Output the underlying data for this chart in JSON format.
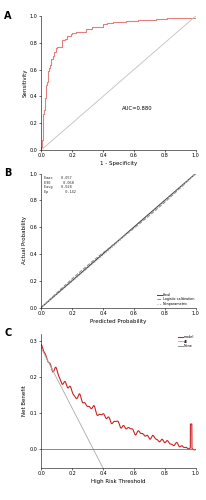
{
  "panel_A": {
    "title_label": "A",
    "auc_text": "AUC=0.880",
    "xlabel": "1 - Specificity",
    "ylabel": "Sensitivity",
    "roc_color": "#e08080",
    "diag_color": "#c0c0c0",
    "xlim": [
      0.0,
      1.0
    ],
    "ylim": [
      0.0,
      1.0
    ],
    "xticks": [
      0.0,
      0.2,
      0.4,
      0.6,
      0.8,
      1.0
    ],
    "yticks": [
      0.0,
      0.2,
      0.4,
      0.6,
      0.8,
      1.0
    ]
  },
  "panel_B": {
    "title_label": "B",
    "xlabel": "Predicted Probability",
    "ylabel": "Actual Probability",
    "ideal_color": "#444444",
    "logistic_color": "#888888",
    "nonparam_color": "#aaaaaa",
    "xlim": [
      0.0,
      1.0
    ],
    "ylim": [
      0.0,
      1.0
    ],
    "stats_text": "Emax    0.057\nE90      0.068\nEavg    0.028\nEp        0.142",
    "legend_labels": [
      "Ideal",
      "Logistic calibration",
      "Nonparametric"
    ],
    "xticks": [
      0.0,
      0.2,
      0.4,
      0.6,
      0.8,
      1.0
    ],
    "yticks": [
      0.0,
      0.2,
      0.4,
      0.6,
      0.8,
      1.0
    ]
  },
  "panel_C": {
    "title_label": "C",
    "xlabel": "High Risk Threshold",
    "ylabel": "Net Benefit",
    "model_color": "#cc2222",
    "all_color": "#aaaaaa",
    "none_color": "#777777",
    "xlim": [
      0.0,
      1.0
    ],
    "ylim": [
      -0.05,
      0.32
    ],
    "legend_labels": [
      "model",
      "All",
      "None"
    ],
    "xticks": [
      0.0,
      0.2,
      0.4,
      0.6,
      0.8,
      1.0
    ],
    "yticks": [
      0.0,
      0.1,
      0.2,
      0.3
    ]
  }
}
